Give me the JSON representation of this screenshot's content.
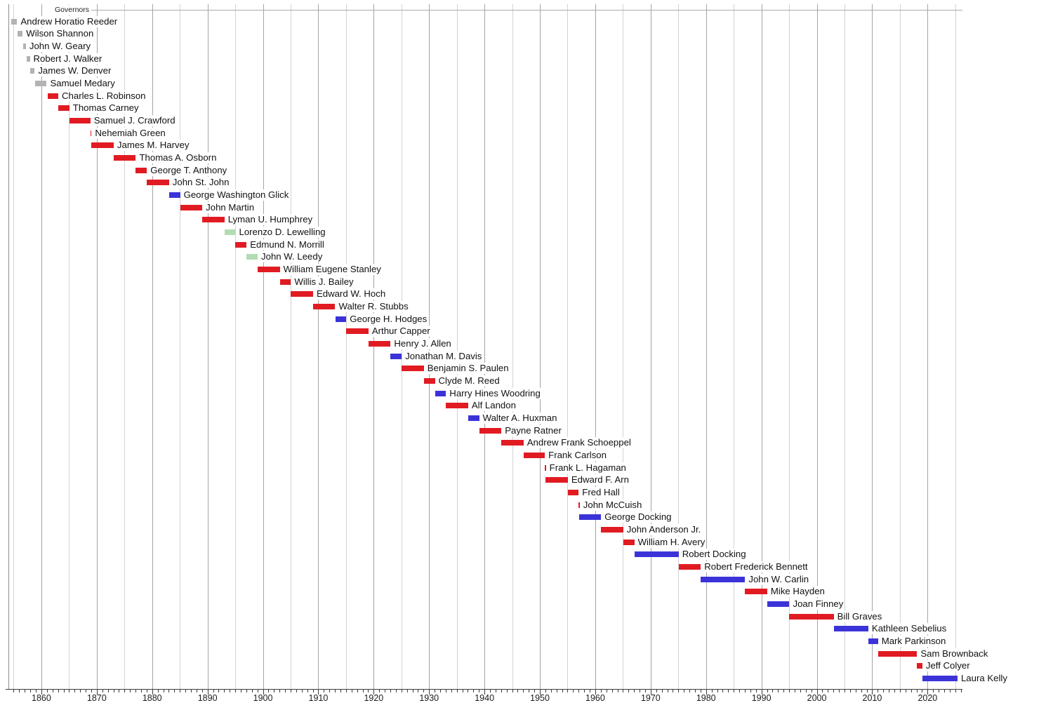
{
  "chart_data": {
    "type": "gantt",
    "title": "Governors",
    "x_axis": {
      "min": 1854,
      "max": 2026,
      "gridline_interval_years": 5,
      "minor_tick_interval_years": 1,
      "tick_labels": [
        "1860",
        "1870",
        "1880",
        "1890",
        "1900",
        "1910",
        "1920",
        "1930",
        "1940",
        "1950",
        "1960",
        "1970",
        "1980",
        "1990",
        "2000",
        "2010",
        "2020"
      ]
    },
    "grid": "on",
    "legend_position": "none",
    "party_colors": {
      "territorial": "#b3b3b3",
      "republican": "#e11b22",
      "democratic": "#3b33d8",
      "populist": "#b2dcb2"
    },
    "governors": [
      {
        "name": "Andrew Horatio Reeder",
        "party": "territorial",
        "start": 1854.5,
        "end": 1855.62
      },
      {
        "name": "Wilson Shannon",
        "party": "territorial",
        "start": 1855.67,
        "end": 1856.62
      },
      {
        "name": "John W. Geary",
        "party": "territorial",
        "start": 1856.7,
        "end": 1857.2
      },
      {
        "name": "Robert J. Walker",
        "party": "territorial",
        "start": 1857.4,
        "end": 1857.92
      },
      {
        "name": "James W. Denver",
        "party": "territorial",
        "start": 1857.95,
        "end": 1858.78
      },
      {
        "name": "Samuel Medary",
        "party": "territorial",
        "start": 1858.92,
        "end": 1860.95
      },
      {
        "name": "Charles L. Robinson",
        "party": "republican",
        "start": 1861.1,
        "end": 1863.05
      },
      {
        "name": "Thomas Carney",
        "party": "republican",
        "start": 1863.05,
        "end": 1865.05
      },
      {
        "name": "Samuel J. Crawford",
        "party": "republican",
        "start": 1865.05,
        "end": 1868.85
      },
      {
        "name": "Nehemiah Green",
        "party": "republican",
        "start": 1868.85,
        "end": 1869.05
      },
      {
        "name": "James M. Harvey",
        "party": "republican",
        "start": 1869.05,
        "end": 1873.05
      },
      {
        "name": "Thomas A. Osborn",
        "party": "republican",
        "start": 1873.05,
        "end": 1877.05
      },
      {
        "name": "George T. Anthony",
        "party": "republican",
        "start": 1877.05,
        "end": 1879.05
      },
      {
        "name": "John St. John",
        "party": "republican",
        "start": 1879.05,
        "end": 1883.05
      },
      {
        "name": "George Washington Glick",
        "party": "democratic",
        "start": 1883.05,
        "end": 1885.05
      },
      {
        "name": "John Martin",
        "party": "republican",
        "start": 1885.05,
        "end": 1889.05
      },
      {
        "name": "Lyman U. Humphrey",
        "party": "republican",
        "start": 1889.05,
        "end": 1893.05
      },
      {
        "name": "Lorenzo D. Lewelling",
        "party": "populist",
        "start": 1893.05,
        "end": 1895.05
      },
      {
        "name": "Edmund N. Morrill",
        "party": "republican",
        "start": 1895.05,
        "end": 1897.05
      },
      {
        "name": "John W. Leedy",
        "party": "populist",
        "start": 1897.05,
        "end": 1899.05
      },
      {
        "name": "William Eugene Stanley",
        "party": "republican",
        "start": 1899.05,
        "end": 1903.05
      },
      {
        "name": "Willis J. Bailey",
        "party": "republican",
        "start": 1903.05,
        "end": 1905.05
      },
      {
        "name": "Edward W. Hoch",
        "party": "republican",
        "start": 1905.05,
        "end": 1909.05
      },
      {
        "name": "Walter R. Stubbs",
        "party": "republican",
        "start": 1909.05,
        "end": 1913.05
      },
      {
        "name": "George H. Hodges",
        "party": "democratic",
        "start": 1913.05,
        "end": 1915.05
      },
      {
        "name": "Arthur Capper",
        "party": "republican",
        "start": 1915.05,
        "end": 1919.05
      },
      {
        "name": "Henry J. Allen",
        "party": "republican",
        "start": 1919.05,
        "end": 1923.05
      },
      {
        "name": "Jonathan M. Davis",
        "party": "democratic",
        "start": 1923.05,
        "end": 1925.05
      },
      {
        "name": "Benjamin S. Paulen",
        "party": "republican",
        "start": 1925.05,
        "end": 1929.05
      },
      {
        "name": "Clyde M. Reed",
        "party": "republican",
        "start": 1929.05,
        "end": 1931.05
      },
      {
        "name": "Harry Hines Woodring",
        "party": "democratic",
        "start": 1931.05,
        "end": 1933.05
      },
      {
        "name": "Alf Landon",
        "party": "republican",
        "start": 1933.05,
        "end": 1937.05
      },
      {
        "name": "Walter A. Huxman",
        "party": "democratic",
        "start": 1937.05,
        "end": 1939.05
      },
      {
        "name": "Payne Ratner",
        "party": "republican",
        "start": 1939.05,
        "end": 1943.05
      },
      {
        "name": "Andrew Frank Schoeppel",
        "party": "republican",
        "start": 1943.05,
        "end": 1947.05
      },
      {
        "name": "Frank Carlson",
        "party": "republican",
        "start": 1947.05,
        "end": 1950.9
      },
      {
        "name": "Frank L. Hagaman",
        "party": "republican",
        "start": 1950.9,
        "end": 1951.05
      },
      {
        "name": "Edward F. Arn",
        "party": "republican",
        "start": 1951.05,
        "end": 1955.05
      },
      {
        "name": "Fred Hall",
        "party": "republican",
        "start": 1955.05,
        "end": 1957.0
      },
      {
        "name": "John McCuish",
        "party": "republican",
        "start": 1957.0,
        "end": 1957.05
      },
      {
        "name": "George Docking",
        "party": "democratic",
        "start": 1957.05,
        "end": 1961.05
      },
      {
        "name": "John Anderson Jr.",
        "party": "republican",
        "start": 1961.05,
        "end": 1965.05
      },
      {
        "name": "William H. Avery",
        "party": "republican",
        "start": 1965.05,
        "end": 1967.05
      },
      {
        "name": "Robert Docking",
        "party": "democratic",
        "start": 1967.05,
        "end": 1975.05
      },
      {
        "name": "Robert Frederick Bennett",
        "party": "republican",
        "start": 1975.05,
        "end": 1979.05
      },
      {
        "name": "John W. Carlin",
        "party": "democratic",
        "start": 1979.05,
        "end": 1987.05
      },
      {
        "name": "Mike Hayden",
        "party": "republican",
        "start": 1987.05,
        "end": 1991.05
      },
      {
        "name": "Joan Finney",
        "party": "democratic",
        "start": 1991.05,
        "end": 1995.05
      },
      {
        "name": "Bill Graves",
        "party": "republican",
        "start": 1995.05,
        "end": 2003.05
      },
      {
        "name": "Kathleen Sebelius",
        "party": "democratic",
        "start": 2003.05,
        "end": 2009.3
      },
      {
        "name": "Mark Parkinson",
        "party": "democratic",
        "start": 2009.3,
        "end": 2011.05
      },
      {
        "name": "Sam Brownback",
        "party": "republican",
        "start": 2011.05,
        "end": 2018.1
      },
      {
        "name": "Jeff Colyer",
        "party": "republican",
        "start": 2018.1,
        "end": 2019.05
      },
      {
        "name": "Laura Kelly",
        "party": "democratic",
        "start": 2019.05,
        "end": 2025.4
      }
    ]
  }
}
